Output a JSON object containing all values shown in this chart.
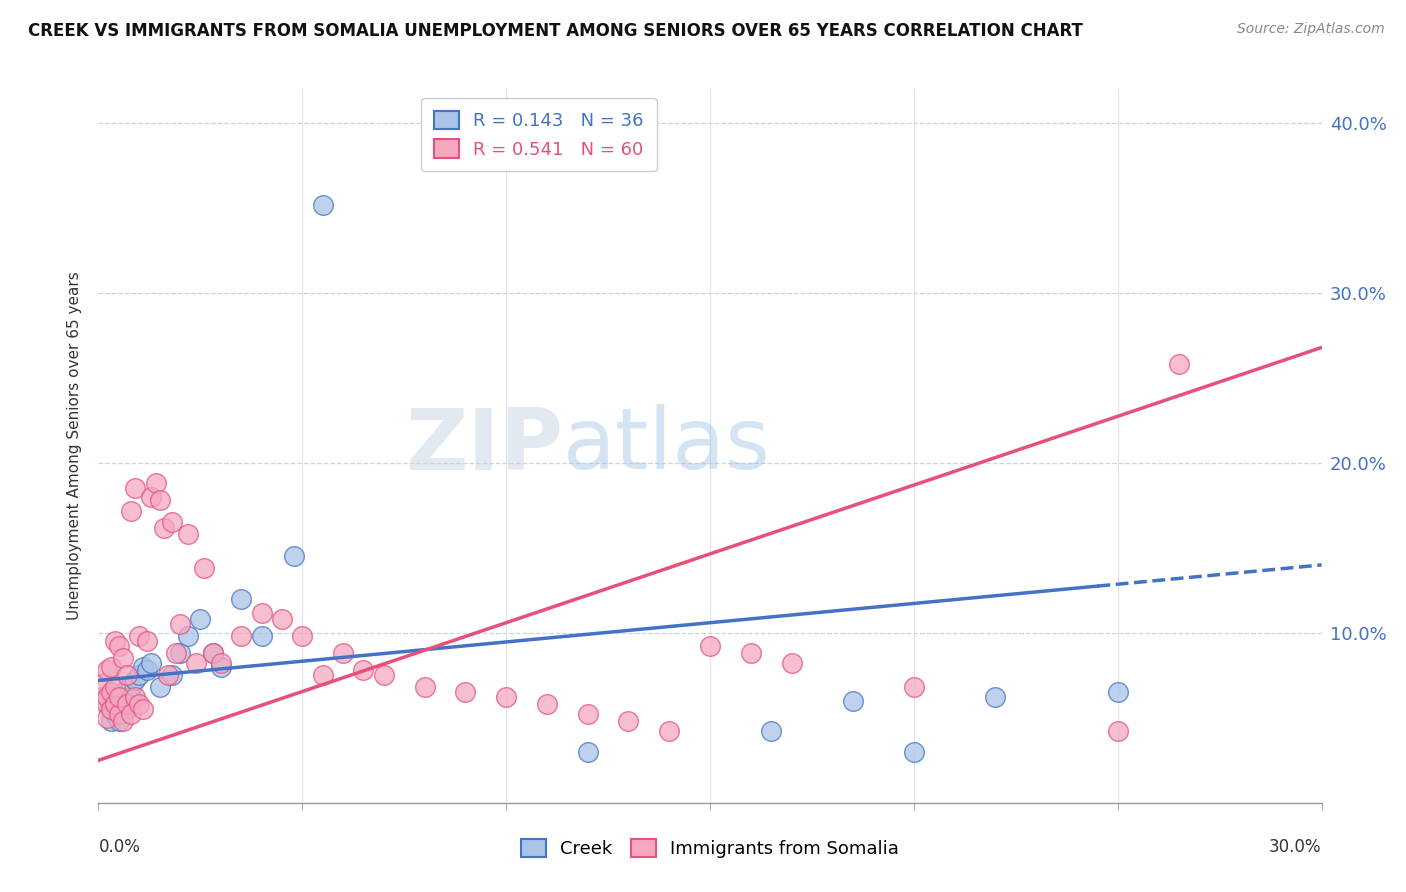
{
  "title": "CREEK VS IMMIGRANTS FROM SOMALIA UNEMPLOYMENT AMONG SENIORS OVER 65 YEARS CORRELATION CHART",
  "source": "Source: ZipAtlas.com",
  "ylabel": "Unemployment Among Seniors over 65 years",
  "xlim": [
    0.0,
    0.3
  ],
  "ylim": [
    0.0,
    0.42
  ],
  "legend_creek_R": "0.143",
  "legend_creek_N": "36",
  "legend_somalia_R": "0.541",
  "legend_somalia_N": "60",
  "creek_color": "#aac4e8",
  "somalia_color": "#f4a8c0",
  "creek_line_color": "#4472c4",
  "somalia_line_color": "#e8507a",
  "creek_line_start_y": 0.072,
  "creek_line_end_y": 0.14,
  "somalia_line_start_y": 0.025,
  "somalia_line_end_y": 0.268,
  "creek_x": [
    0.001,
    0.002,
    0.003,
    0.003,
    0.004,
    0.004,
    0.005,
    0.005,
    0.006,
    0.006,
    0.007,
    0.007,
    0.008,
    0.008,
    0.009,
    0.01,
    0.011,
    0.012,
    0.013,
    0.015,
    0.018,
    0.02,
    0.022,
    0.025,
    0.028,
    0.03,
    0.035,
    0.04,
    0.048,
    0.055,
    0.12,
    0.165,
    0.185,
    0.2,
    0.22,
    0.25
  ],
  "creek_y": [
    0.062,
    0.058,
    0.055,
    0.048,
    0.052,
    0.062,
    0.048,
    0.06,
    0.058,
    0.065,
    0.055,
    0.06,
    0.062,
    0.068,
    0.072,
    0.075,
    0.08,
    0.078,
    0.082,
    0.068,
    0.075,
    0.088,
    0.098,
    0.108,
    0.088,
    0.08,
    0.12,
    0.098,
    0.145,
    0.352,
    0.03,
    0.042,
    0.06,
    0.03,
    0.062,
    0.065
  ],
  "somalia_x": [
    0.001,
    0.001,
    0.002,
    0.002,
    0.002,
    0.003,
    0.003,
    0.003,
    0.004,
    0.004,
    0.004,
    0.005,
    0.005,
    0.005,
    0.006,
    0.006,
    0.007,
    0.007,
    0.008,
    0.008,
    0.009,
    0.009,
    0.01,
    0.01,
    0.011,
    0.012,
    0.013,
    0.014,
    0.015,
    0.016,
    0.017,
    0.018,
    0.019,
    0.02,
    0.022,
    0.024,
    0.026,
    0.028,
    0.03,
    0.035,
    0.04,
    0.045,
    0.05,
    0.055,
    0.06,
    0.065,
    0.07,
    0.08,
    0.09,
    0.1,
    0.11,
    0.12,
    0.13,
    0.14,
    0.15,
    0.16,
    0.17,
    0.2,
    0.25,
    0.265
  ],
  "somalia_y": [
    0.06,
    0.07,
    0.05,
    0.062,
    0.078,
    0.055,
    0.065,
    0.08,
    0.058,
    0.068,
    0.095,
    0.052,
    0.062,
    0.092,
    0.048,
    0.085,
    0.058,
    0.075,
    0.052,
    0.172,
    0.062,
    0.185,
    0.058,
    0.098,
    0.055,
    0.095,
    0.18,
    0.188,
    0.178,
    0.162,
    0.075,
    0.165,
    0.088,
    0.105,
    0.158,
    0.082,
    0.138,
    0.088,
    0.082,
    0.098,
    0.112,
    0.108,
    0.098,
    0.075,
    0.088,
    0.078,
    0.075,
    0.068,
    0.065,
    0.062,
    0.058,
    0.052,
    0.048,
    0.042,
    0.092,
    0.088,
    0.082,
    0.068,
    0.042,
    0.258
  ]
}
